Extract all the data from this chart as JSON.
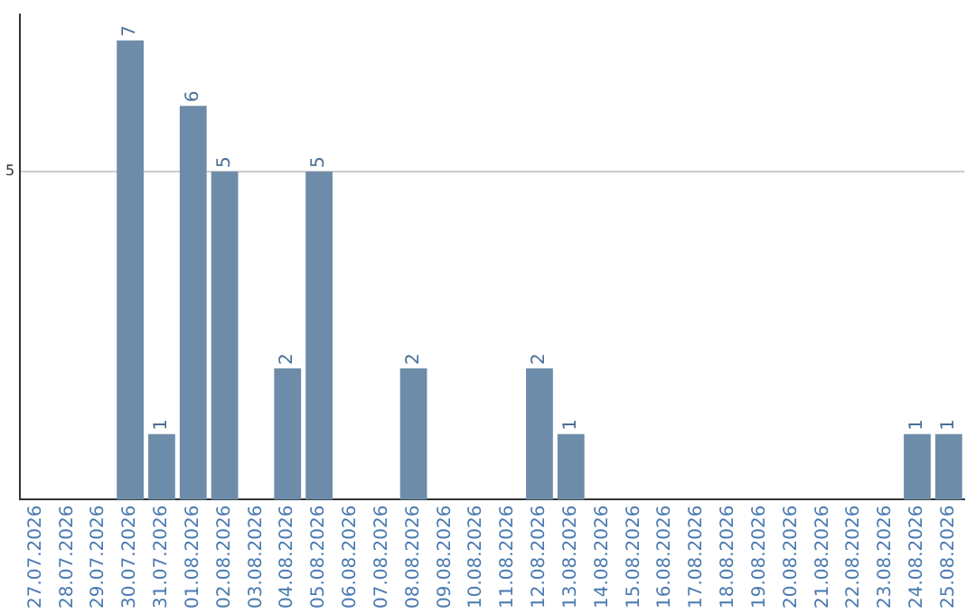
{
  "chart_data": {
    "type": "bar",
    "categories": [
      "27.07.2026",
      "28.07.2026",
      "29.07.2026",
      "30.07.2026",
      "31.07.2026",
      "01.08.2026",
      "02.08.2026",
      "03.08.2026",
      "04.08.2026",
      "05.08.2026",
      "06.08.2026",
      "07.08.2026",
      "08.08.2026",
      "09.08.2026",
      "10.08.2026",
      "11.08.2026",
      "12.08.2026",
      "13.08.2026",
      "14.08.2026",
      "15.08.2026",
      "16.08.2026",
      "17.08.2026",
      "18.08.2026",
      "19.08.2026",
      "20.08.2026",
      "21.08.2026",
      "22.08.2026",
      "23.08.2026",
      "24.08.2026",
      "25.08.2026"
    ],
    "values": [
      0,
      0,
      0,
      7,
      1,
      6,
      5,
      0,
      2,
      5,
      0,
      0,
      2,
      0,
      0,
      0,
      2,
      1,
      0,
      0,
      0,
      0,
      0,
      0,
      0,
      0,
      0,
      0,
      1,
      1
    ],
    "color": "#6d8caa",
    "value_labels": [
      null,
      null,
      null,
      "7",
      "1",
      "6",
      "5",
      null,
      "2",
      "5",
      null,
      null,
      "2",
      null,
      null,
      null,
      "2",
      "1",
      null,
      null,
      null,
      null,
      null,
      null,
      null,
      null,
      null,
      null,
      "1",
      "1"
    ],
    "ylim": [
      0,
      7.4
    ],
    "yticks": [
      5
    ],
    "grid": "y",
    "legend": false
  }
}
